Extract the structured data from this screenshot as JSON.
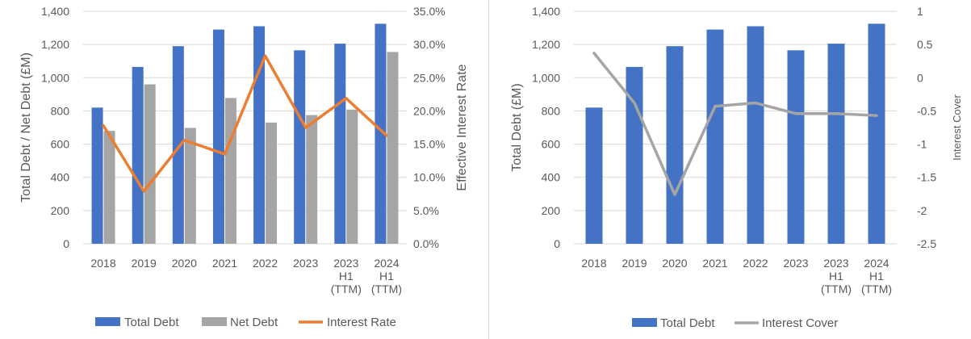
{
  "chart_data": [
    {
      "type": "bar",
      "title": "",
      "categories": [
        [
          "2018"
        ],
        [
          "2019"
        ],
        [
          "2020"
        ],
        [
          "2021"
        ],
        [
          "2022"
        ],
        [
          "2023"
        ],
        [
          "2023",
          "H1",
          "(TTM)"
        ],
        [
          "2024",
          "H1",
          "(TTM)"
        ]
      ],
      "ylabel": "Total Debt / Net Debt (£M)",
      "y2label": "Effective Interest Rate",
      "ylim": [
        0,
        1400
      ],
      "y2lim": [
        0,
        35
      ],
      "yticks": [
        "0",
        "200",
        "400",
        "600",
        "800",
        "1,000",
        "1,200",
        "1,400"
      ],
      "y2ticks": [
        "0.0%",
        "5.0%",
        "10.0%",
        "15.0%",
        "20.0%",
        "25.0%",
        "30.0%",
        "35.0%"
      ],
      "series": [
        {
          "name": "Total Debt",
          "kind": "bar",
          "color": "#4472C4",
          "values": [
            820,
            1065,
            1190,
            1290,
            1310,
            1165,
            1205,
            1325
          ]
        },
        {
          "name": "Net Debt",
          "kind": "bar",
          "color": "#A5A5A5",
          "values": [
            680,
            960,
            698,
            878,
            730,
            775,
            808,
            1155
          ]
        },
        {
          "name": "Interest Rate",
          "kind": "line",
          "axis": "right",
          "color": "#ED7D31",
          "values": [
            17.8,
            7.9,
            15.6,
            13.5,
            28.3,
            17.5,
            21.9,
            16.3
          ]
        }
      ],
      "legend": "bottom"
    },
    {
      "type": "bar",
      "title": "",
      "categories": [
        [
          "2018"
        ],
        [
          "2019"
        ],
        [
          "2020"
        ],
        [
          "2021"
        ],
        [
          "2022"
        ],
        [
          "2023"
        ],
        [
          "2023",
          "H1",
          "(TTM)"
        ],
        [
          "2024",
          "H1",
          "(TTM)"
        ]
      ],
      "ylabel": "Total Debt (£M)",
      "y2label": "Interest Cover",
      "ylim": [
        0,
        1400
      ],
      "y2lim": [
        -2.5,
        1
      ],
      "yticks": [
        "0",
        "200",
        "400",
        "600",
        "800",
        "1,000",
        "1,200",
        "1,400"
      ],
      "y2ticks": [
        "-2.5",
        "-2",
        "-1.5",
        "-1",
        "-0.5",
        "0",
        "0.5",
        "1"
      ],
      "series": [
        {
          "name": "Total Debt",
          "kind": "bar",
          "color": "#4472C4",
          "values": [
            820,
            1065,
            1190,
            1290,
            1310,
            1165,
            1205,
            1325
          ]
        },
        {
          "name": "Interest Cover",
          "kind": "line",
          "axis": "right",
          "color": "#A5A5A5",
          "values": [
            0.37,
            -0.38,
            -1.76,
            -0.43,
            -0.38,
            -0.54,
            -0.54,
            -0.57
          ]
        }
      ],
      "legend": "bottom"
    }
  ]
}
